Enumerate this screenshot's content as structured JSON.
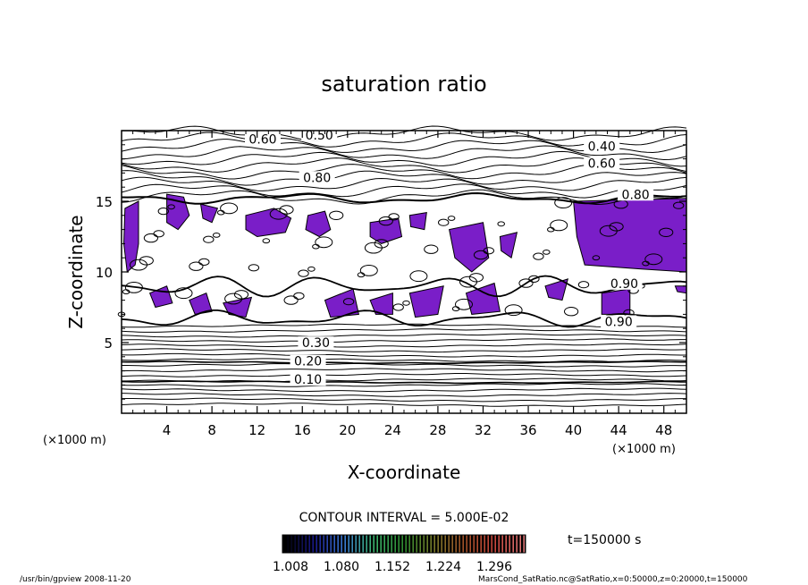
{
  "chart_data": {
    "type": "heatmap",
    "title": "saturation ratio",
    "xlabel": "X-coordinate",
    "ylabel": "Z-coordinate",
    "x_unit": "(×1000 m)",
    "z_unit": "(×1000 m)",
    "xlim": [
      0,
      50
    ],
    "ylim": [
      0,
      20
    ],
    "x_ticks": [
      4,
      8,
      12,
      16,
      20,
      24,
      28,
      32,
      36,
      40,
      44,
      48
    ],
    "y_ticks": [
      5,
      10,
      15
    ],
    "contour_interval_text": "CONTOUR INTERVAL = 5.000E-02",
    "time_label": "t=150000 s",
    "colorbar": {
      "tick_labels": [
        "1.008",
        "1.080",
        "1.152",
        "1.224",
        "1.296"
      ],
      "colors": [
        "#000000",
        "#1a1a8c",
        "#3a7bd5",
        "#3cb46e",
        "#2e8b2e",
        "#7a7a2a",
        "#a05028",
        "#c8463c",
        "#e07878"
      ]
    },
    "fill_color": "#7a1ec8",
    "contour_labels": [
      {
        "x": 12.5,
        "z": 19.2,
        "text": "0.60"
      },
      {
        "x": 17.5,
        "z": 19.5,
        "text": "0.50"
      },
      {
        "x": 42.5,
        "z": 18.7,
        "text": "0.40"
      },
      {
        "x": 42.5,
        "z": 17.5,
        "text": "0.60"
      },
      {
        "x": 17.3,
        "z": 16.5,
        "text": "0.80"
      },
      {
        "x": 45.5,
        "z": 15.3,
        "text": "0.80"
      },
      {
        "x": 44.5,
        "z": 9.0,
        "text": "0.90"
      },
      {
        "x": 44.0,
        "z": 6.3,
        "text": "0.90"
      },
      {
        "x": 17.2,
        "z": 4.8,
        "text": "0.30"
      },
      {
        "x": 16.5,
        "z": 3.5,
        "text": "0.20"
      },
      {
        "x": 16.5,
        "z": 2.2,
        "text": "0.10"
      }
    ],
    "supersaturated_regions": [
      [
        [
          0.3,
          14.5
        ],
        [
          1.5,
          15.0
        ],
        [
          1.5,
          12.0
        ],
        [
          1.2,
          10.5
        ],
        [
          0.5,
          10.0
        ],
        [
          0.2,
          12.0
        ]
      ],
      [
        [
          4.0,
          15.5
        ],
        [
          5.5,
          15.3
        ],
        [
          6.0,
          14.0
        ],
        [
          5.0,
          13.0
        ],
        [
          4.0,
          13.5
        ]
      ],
      [
        [
          7.0,
          14.8
        ],
        [
          8.5,
          14.5
        ],
        [
          8.0,
          13.5
        ],
        [
          7.2,
          13.8
        ]
      ],
      [
        [
          11.0,
          14.0
        ],
        [
          13.5,
          14.5
        ],
        [
          15.0,
          13.8
        ],
        [
          14.5,
          12.8
        ],
        [
          12.0,
          12.5
        ],
        [
          11.0,
          13.0
        ]
      ],
      [
        [
          16.5,
          14.0
        ],
        [
          18.0,
          14.3
        ],
        [
          18.5,
          13.0
        ],
        [
          17.5,
          12.5
        ],
        [
          16.3,
          13.0
        ]
      ],
      [
        [
          22.0,
          13.5
        ],
        [
          24.5,
          13.8
        ],
        [
          24.8,
          12.5
        ],
        [
          23.0,
          12.0
        ],
        [
          22.0,
          12.5
        ]
      ],
      [
        [
          25.5,
          14.0
        ],
        [
          27.0,
          14.2
        ],
        [
          26.8,
          13.0
        ],
        [
          25.6,
          13.2
        ]
      ],
      [
        [
          29.0,
          13.0
        ],
        [
          32.0,
          13.5
        ],
        [
          32.5,
          11.0
        ],
        [
          31.0,
          10.0
        ],
        [
          29.5,
          11.0
        ]
      ],
      [
        [
          33.5,
          12.5
        ],
        [
          35.0,
          12.8
        ],
        [
          34.5,
          11.0
        ],
        [
          33.6,
          11.5
        ]
      ],
      [
        [
          40.0,
          15.0
        ],
        [
          50.0,
          15.2
        ],
        [
          50.0,
          10.0
        ],
        [
          46.0,
          10.2
        ],
        [
          41.0,
          10.5
        ],
        [
          40.3,
          12.5
        ]
      ],
      [
        [
          2.5,
          8.5
        ],
        [
          4.0,
          9.0
        ],
        [
          4.5,
          7.8
        ],
        [
          3.0,
          7.5
        ]
      ],
      [
        [
          6.0,
          8.0
        ],
        [
          7.5,
          8.5
        ],
        [
          8.0,
          7.2
        ],
        [
          6.5,
          7.0
        ]
      ],
      [
        [
          9.0,
          7.8
        ],
        [
          11.5,
          8.2
        ],
        [
          11.0,
          6.8
        ],
        [
          9.5,
          7.0
        ]
      ],
      [
        [
          18.0,
          8.0
        ],
        [
          20.5,
          8.8
        ],
        [
          21.0,
          7.0
        ],
        [
          18.5,
          6.8
        ]
      ],
      [
        [
          22.0,
          8.0
        ],
        [
          24.0,
          8.5
        ],
        [
          24.0,
          7.0
        ],
        [
          22.5,
          7.0
        ]
      ],
      [
        [
          25.5,
          8.5
        ],
        [
          28.5,
          9.0
        ],
        [
          28.0,
          7.0
        ],
        [
          26.0,
          6.8
        ]
      ],
      [
        [
          30.5,
          8.5
        ],
        [
          33.0,
          9.2
        ],
        [
          33.5,
          7.2
        ],
        [
          31.0,
          7.0
        ]
      ],
      [
        [
          37.5,
          9.0
        ],
        [
          39.5,
          9.5
        ],
        [
          39.0,
          8.0
        ],
        [
          37.8,
          8.2
        ]
      ],
      [
        [
          42.5,
          8.5
        ],
        [
          45.0,
          8.8
        ],
        [
          45.0,
          7.0
        ],
        [
          42.5,
          7.0
        ]
      ],
      [
        [
          49.0,
          9.0
        ],
        [
          50.0,
          9.0
        ],
        [
          50.0,
          8.5
        ],
        [
          49.2,
          8.6
        ]
      ]
    ]
  },
  "footer": {
    "left": "/usr/bin/gpview  2008-11-20",
    "right": "MarsCond_SatRatio.nc@SatRatio,x=0:50000,z=0:20000,t=150000"
  }
}
